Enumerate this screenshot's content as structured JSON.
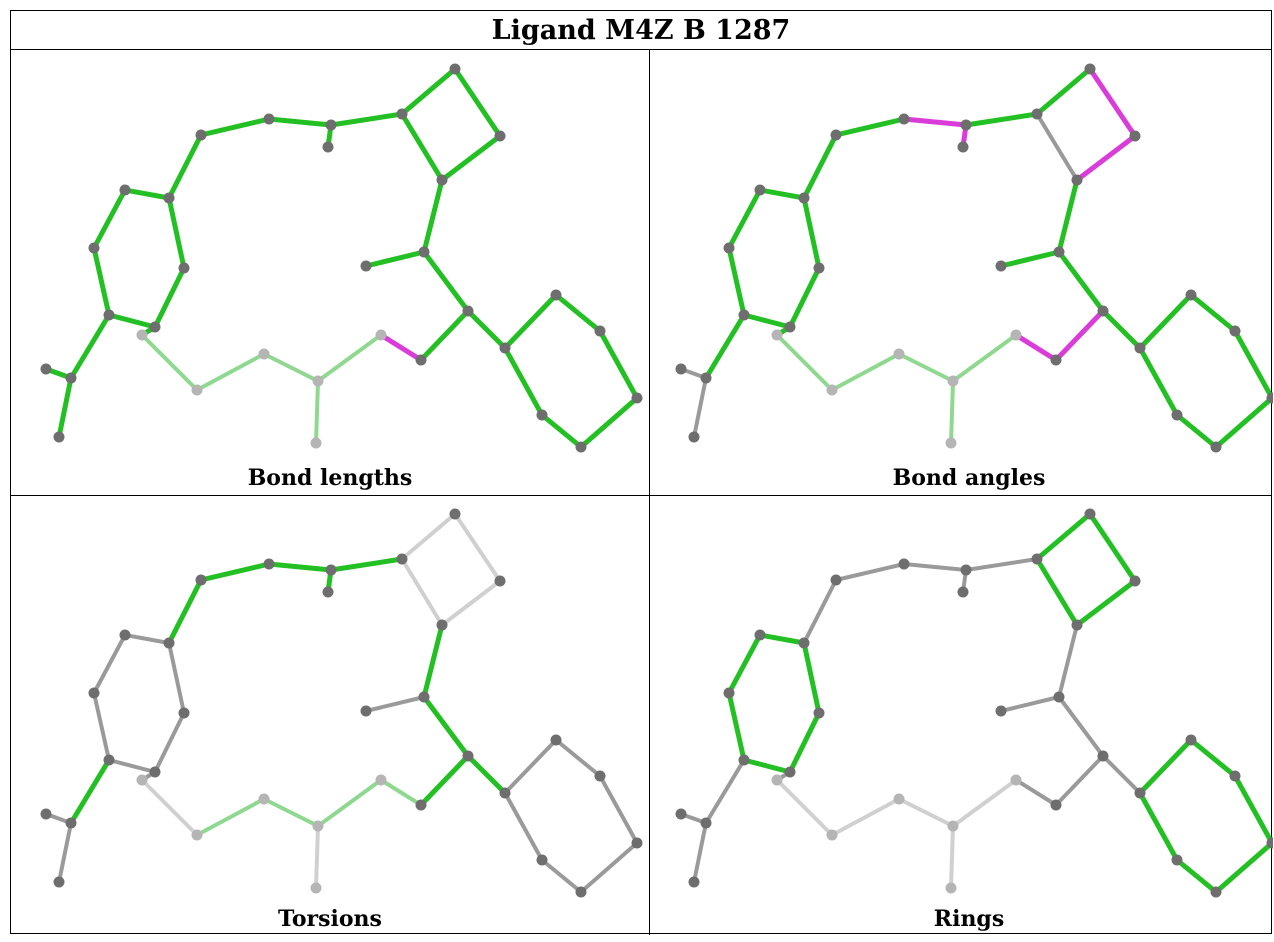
{
  "title": "Ligand M4Z B 1287",
  "panels": [
    {
      "caption": "Bond lengths"
    },
    {
      "caption": "Bond angles"
    },
    {
      "caption": "Torsions"
    },
    {
      "caption": "Rings"
    }
  ],
  "colors": {
    "green": "#22c022",
    "light_green": "#8fd88f",
    "magenta": "#d93cd9",
    "gray": "#9a9a9a",
    "light_gray": "#d0d0d0",
    "atom": "#6e6e6e",
    "atom_light": "#b5b5b5"
  }
}
